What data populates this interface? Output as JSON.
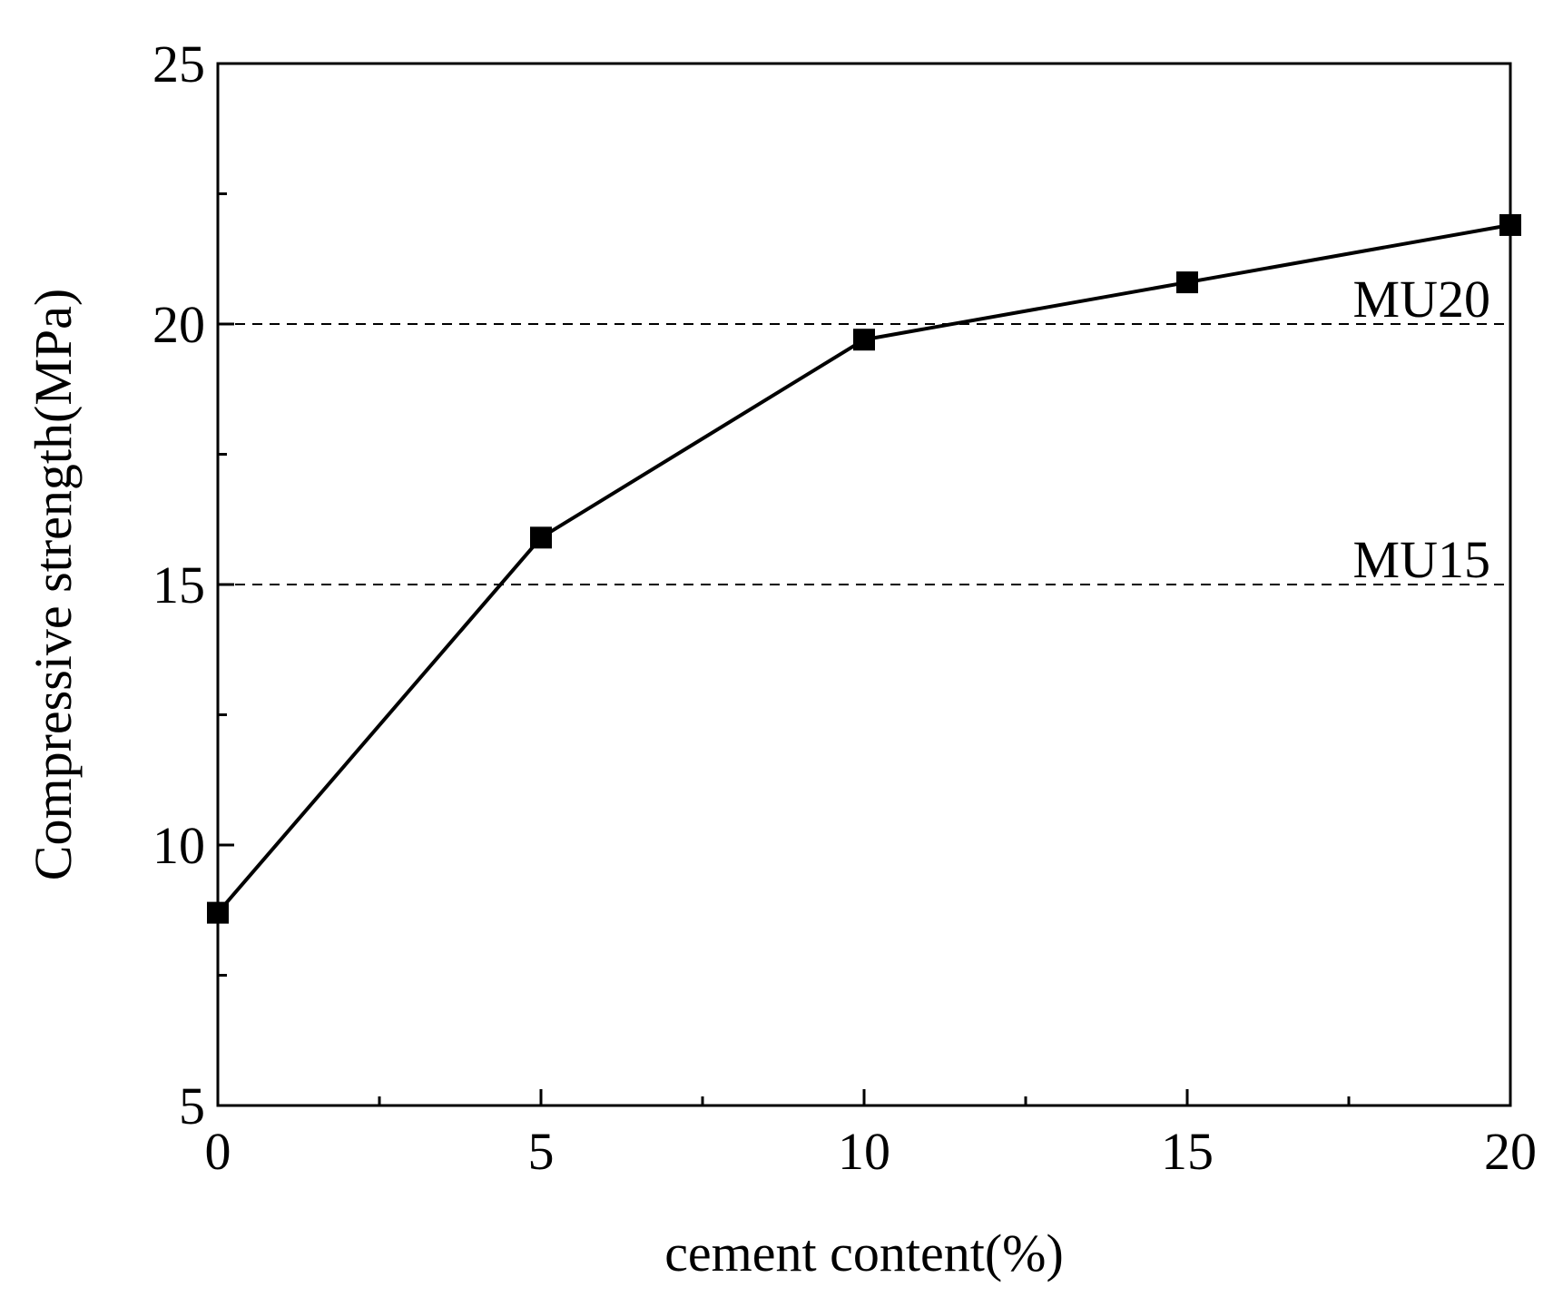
{
  "chart_data": {
    "type": "line",
    "title": "",
    "xlabel": "cement content(%)",
    "ylabel": "Compressive strength(MPa)",
    "xlim": [
      0,
      20
    ],
    "ylim": [
      5,
      25
    ],
    "x_major_ticks": [
      0,
      5,
      10,
      15,
      20
    ],
    "x_minor_ticks": [
      2.5,
      7.5,
      12.5,
      17.5
    ],
    "y_major_ticks": [
      5,
      10,
      15,
      20,
      25
    ],
    "y_minor_ticks": [
      7.5,
      12.5,
      17.5,
      22.5
    ],
    "x_tick_labels": [
      "0",
      "5",
      "10",
      "15",
      "20"
    ],
    "y_tick_labels": [
      "5",
      "10",
      "15",
      "20",
      "25"
    ],
    "grid": false,
    "series": [
      {
        "marker": "square",
        "color": "#000000",
        "x": [
          0,
          5,
          10,
          15,
          20
        ],
        "y": [
          8.7,
          15.9,
          19.7,
          20.8,
          21.9
        ]
      }
    ],
    "reference_lines": [
      {
        "label": "MU20",
        "y": 20,
        "style": "dashed"
      },
      {
        "label": "MU15",
        "y": 15,
        "style": "dashed"
      }
    ]
  }
}
